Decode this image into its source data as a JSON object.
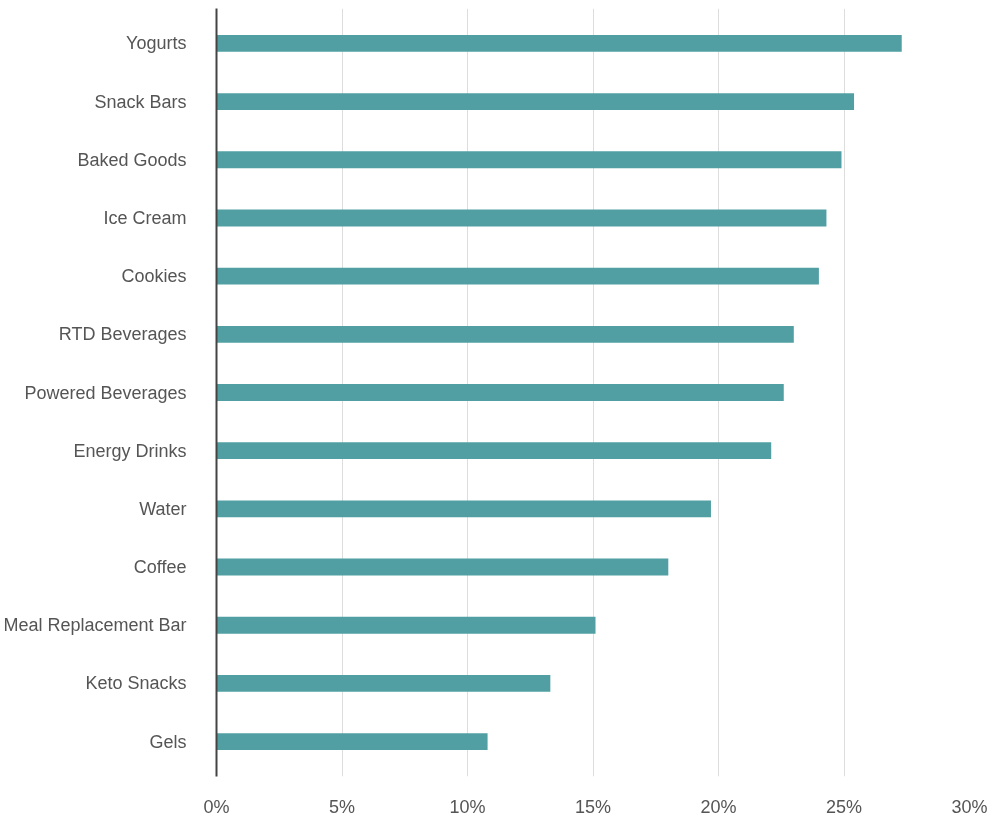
{
  "chart_data": {
    "type": "bar",
    "orientation": "horizontal",
    "categories": [
      "Yogurts",
      "Snack Bars",
      "Baked Goods",
      "Ice Cream",
      "Cookies",
      "RTD Beverages",
      "Powered Beverages",
      "Energy Drinks",
      "Water",
      "Coffee",
      "Meal Replacement Bar",
      "Keto Snacks",
      "Gels"
    ],
    "values": [
      27.3,
      25.4,
      24.9,
      24.3,
      24.0,
      23.0,
      22.6,
      22.1,
      19.7,
      18.0,
      15.1,
      13.3,
      10.8
    ],
    "color": "#519fa3",
    "xlim": [
      0,
      30
    ],
    "xticks": [
      {
        "value": 0,
        "label": "0%"
      },
      {
        "value": 5,
        "label": "5%"
      },
      {
        "value": 10,
        "label": "10%"
      },
      {
        "value": 15,
        "label": "15%"
      },
      {
        "value": 20,
        "label": "20%"
      },
      {
        "value": 25,
        "label": "25%"
      },
      {
        "value": 30,
        "label": "30%"
      }
    ],
    "grid": "x"
  }
}
